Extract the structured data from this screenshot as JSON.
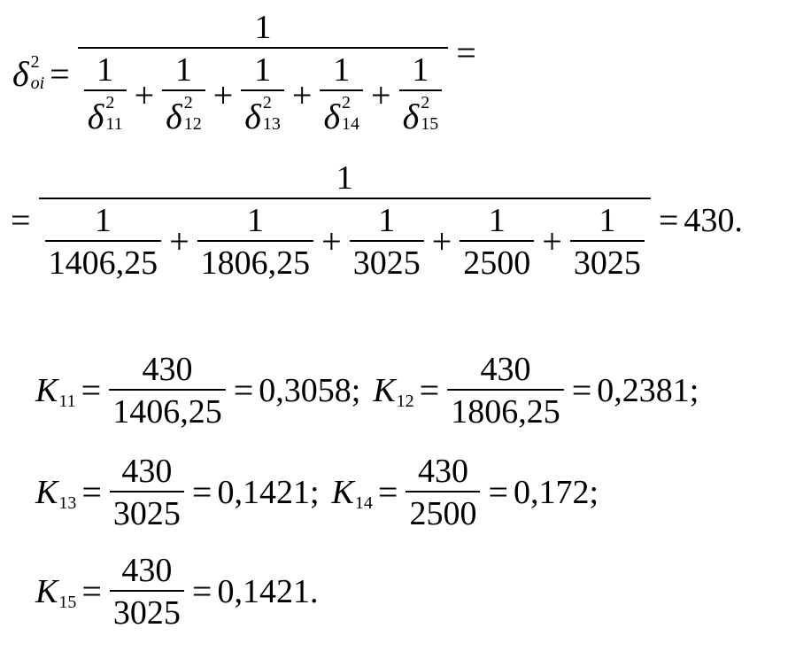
{
  "formula": {
    "lhs_symbol": "δ",
    "lhs_sup": "2",
    "lhs_sub": "oi",
    "one": "1",
    "equals": "=",
    "plus": "+",
    "delta": "δ",
    "sq": "2",
    "subs": [
      "11",
      "12",
      "13",
      "14",
      "15"
    ],
    "denominators": [
      "1406,25",
      "1806,25",
      "3025",
      "2500",
      "3025"
    ],
    "result": "430."
  },
  "coefficients": {
    "k_symbol": "K",
    "numerator": "430",
    "items": [
      {
        "sub": "11",
        "den": "1406,25",
        "value": "0,3058;"
      },
      {
        "sub": "12",
        "den": "1806,25",
        "value": "0,2381;"
      },
      {
        "sub": "13",
        "den": "3025",
        "value": "0,1421;"
      },
      {
        "sub": "14",
        "den": "2500",
        "value": "0,172;"
      },
      {
        "sub": "15",
        "den": "3025",
        "value": "0,1421."
      }
    ]
  }
}
